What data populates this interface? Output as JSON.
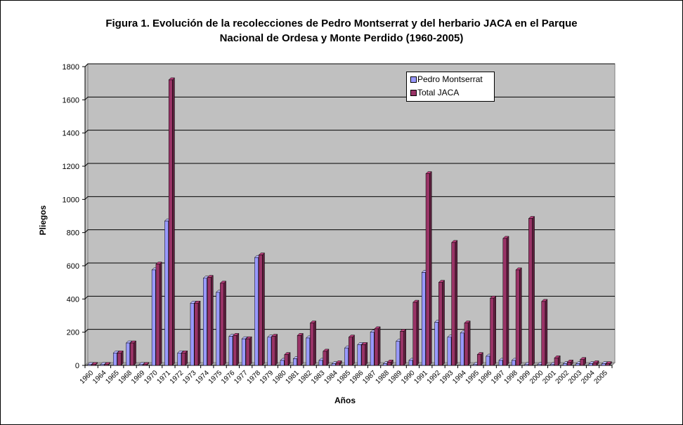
{
  "chart_data": {
    "type": "bar",
    "title_lines": [
      "Figura 1. Evolución de la recolecciones de Pedro Montserrat y  del herbario JACA en el Parque",
      "Nacional de Ordesa y Monte Perdido (1960-2005)"
    ],
    "xlabel": "Años",
    "ylabel": "Pliegos",
    "ylim": [
      0,
      1800
    ],
    "yticks": [
      0,
      200,
      400,
      600,
      800,
      1000,
      1200,
      1400,
      1600,
      1800
    ],
    "grid": true,
    "legend_position": "top-right",
    "categories": [
      "1960",
      "1964",
      "1965",
      "1968",
      "1969",
      "1970",
      "1971",
      "1972",
      "1973",
      "1974",
      "1975",
      "1976",
      "1977",
      "1978",
      "1979",
      "1980",
      "1981",
      "1982",
      "1983",
      "1984",
      "1985",
      "1986",
      "1987",
      "1988",
      "1989",
      "1990",
      "1991",
      "1992",
      "1993",
      "1994",
      "1995",
      "1996",
      "1997",
      "1998",
      "1999",
      "2000",
      "2001",
      "2002",
      "2003",
      "2004",
      "2005"
    ],
    "series": [
      {
        "name": "Pedro Montserrat",
        "color": "#9999ff",
        "values": [
          5,
          5,
          75,
          135,
          5,
          575,
          870,
          75,
          375,
          525,
          440,
          175,
          160,
          650,
          170,
          30,
          40,
          165,
          30,
          10,
          105,
          125,
          200,
          10,
          145,
          30,
          560,
          260,
          170,
          195,
          5,
          55,
          30,
          30,
          5,
          5,
          5,
          10,
          10,
          10,
          10
        ]
      },
      {
        "name": "Total JACA",
        "color": "#993366",
        "values": [
          5,
          5,
          75,
          135,
          5,
          610,
          1720,
          75,
          375,
          530,
          495,
          180,
          160,
          665,
          175,
          65,
          180,
          255,
          85,
          15,
          170,
          125,
          220,
          20,
          205,
          380,
          1155,
          500,
          740,
          255,
          65,
          405,
          765,
          575,
          885,
          385,
          45,
          20,
          35,
          15,
          10
        ]
      }
    ]
  }
}
